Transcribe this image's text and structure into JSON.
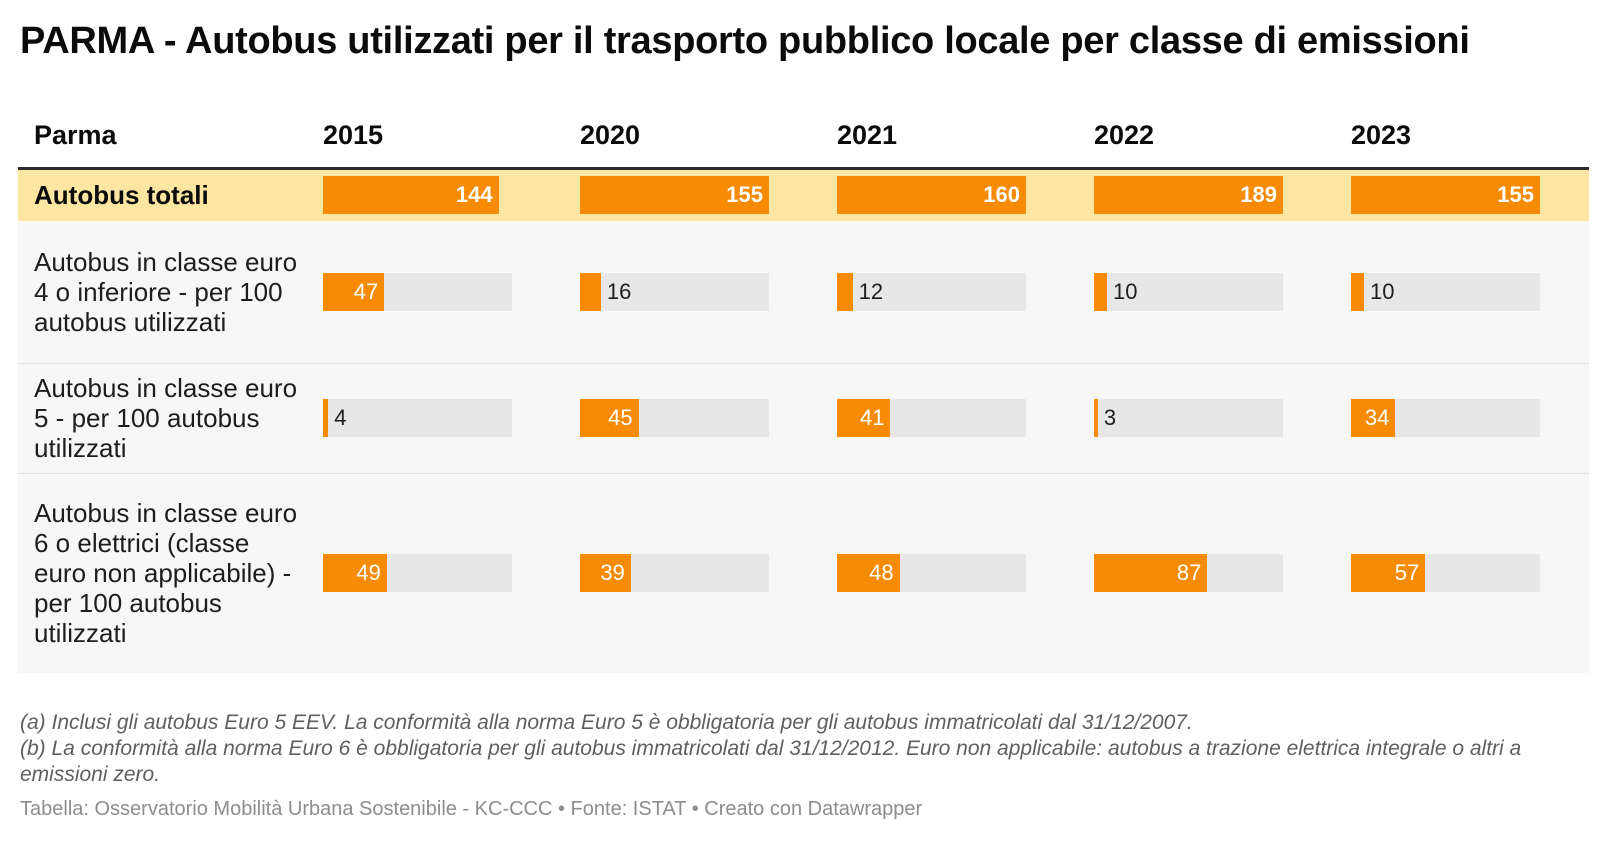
{
  "title": "PARMA - Autobus utilizzati per il trasporto pubblico locale per classe di emissioni",
  "colors": {
    "bar": "#f78c04",
    "bar_track": "#e7e7e7",
    "highlight_row": "#fde6a2",
    "row_bg": "#f7f7f7"
  },
  "chart_data": {
    "type": "table",
    "header": {
      "label": "Parma",
      "years": [
        "2015",
        "2020",
        "2021",
        "2022",
        "2023"
      ]
    },
    "rows": [
      {
        "label": "Autobus totali",
        "values": [
          144,
          155,
          160,
          189,
          155
        ],
        "scale_max": 155,
        "highlight": true
      },
      {
        "label": "Autobus in classe euro 4 o inferiore - per 100 autobus utilizzati",
        "values": [
          47,
          16,
          12,
          10,
          10
        ],
        "scale_max": 145
      },
      {
        "label": "Autobus in classe euro 5 - per 100 autobus utilizzati",
        "values": [
          4,
          45,
          41,
          3,
          34
        ],
        "scale_max": 145
      },
      {
        "label": "Autobus in classe euro 6 o elettrici (classe euro non applicabile) - per 100 autobus utilizzati",
        "values": [
          49,
          39,
          48,
          87,
          57
        ],
        "scale_max": 145
      }
    ]
  },
  "notes": [
    "(a) Inclusi gli autobus Euro 5 EEV. La conformità alla norma Euro 5 è obbligatoria per gli autobus immatricolati dal 31/12/2007.",
    "(b) La conformità alla norma Euro 6 è obbligatoria per gli autobus immatricolati dal 31/12/2012. Euro non applicabile: autobus a trazione elettrica integrale o altri a emissioni zero."
  ],
  "source": "Tabella: Osservatorio Mobilità Urbana Sostenibile - KC-CCC • Fonte: ISTAT • Creato con Datawrapper"
}
